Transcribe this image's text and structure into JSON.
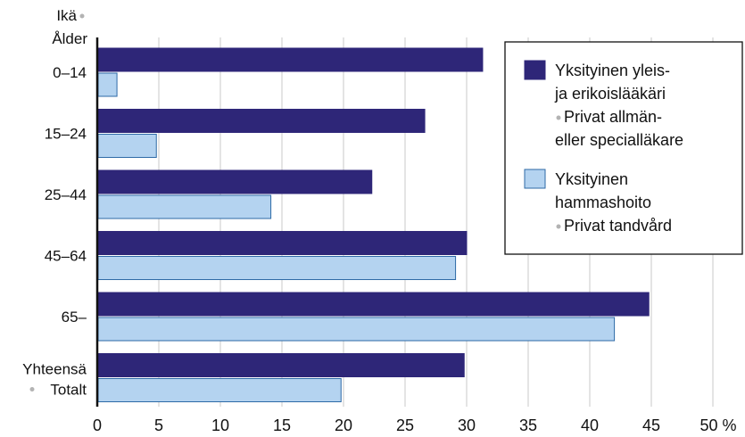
{
  "chart_data": {
    "type": "bar",
    "orientation": "horizontal",
    "y_axis_title": {
      "line1": "Ikä",
      "line2": "Ålder"
    },
    "categories": [
      {
        "id": "0-14",
        "line1": "0–14",
        "line2": ""
      },
      {
        "id": "15-24",
        "line1": "15–24",
        "line2": ""
      },
      {
        "id": "25-44",
        "line1": "25–44",
        "line2": ""
      },
      {
        "id": "45-64",
        "line1": "45–64",
        "line2": ""
      },
      {
        "id": "65-",
        "line1": "65–",
        "line2": ""
      },
      {
        "id": "total",
        "line1": "Yhteensä",
        "line2": "Totalt"
      }
    ],
    "series": [
      {
        "name": "Yksityinen yleis- ja erikoislääkäri / Privat allmän- eller specialläkare",
        "legend_lines": [
          "Yksityinen yleis-",
          "ja erikoislääkäri",
          "Privat allmän-",
          "eller specialläkare"
        ],
        "color": "#2e2678",
        "values": [
          31.3,
          26.6,
          22.3,
          30.0,
          44.8,
          29.8
        ]
      },
      {
        "name": "Yksityinen hammashoito / Privat tandvård",
        "legend_lines": [
          "Yksityinen",
          "hammashoito",
          "Privat tandvård"
        ],
        "color": "#b4d3f0",
        "values": [
          1.6,
          4.8,
          14.1,
          29.1,
          42.0,
          19.8
        ]
      }
    ],
    "xticks": [
      "0",
      "5",
      "10",
      "15",
      "20",
      "25",
      "30",
      "35",
      "40",
      "45",
      "50 %"
    ],
    "xlim": [
      0,
      50
    ],
    "grid": true,
    "legend_position": "top-right"
  }
}
